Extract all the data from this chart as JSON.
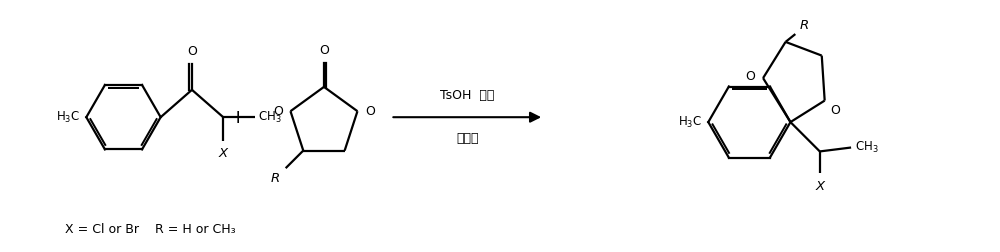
{
  "background_color": "#ffffff",
  "figsize": [
    10.0,
    2.52
  ],
  "dpi": 100,
  "reaction_conditions_line1": "TsOH  甲苯",
  "reaction_conditions_line2": "季锨盐",
  "footnote": "X = Cl or Br    R = H or CH₃",
  "line_color": "#000000",
  "text_color": "#000000",
  "bond_lw": 1.6
}
